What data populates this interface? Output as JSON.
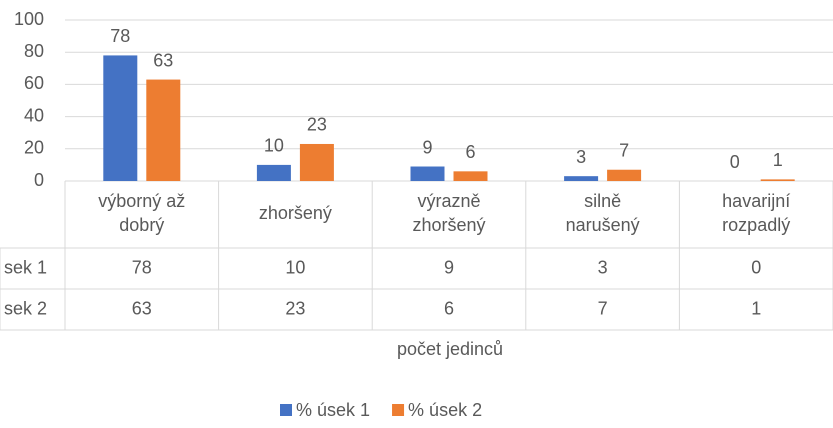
{
  "chart_data": {
    "type": "bar",
    "categories": [
      "výborný až\ndobrý",
      "zhoršený",
      "výrazně\nzhoršený",
      "silně\nnarušený",
      "havarijní\nrozpadlý"
    ],
    "series": [
      {
        "name": "% úsek 1",
        "color": "#4472c4",
        "values": [
          78,
          10,
          9,
          3,
          0
        ]
      },
      {
        "name": "% úsek 2",
        "color": "#ed7d31",
        "values": [
          63,
          23,
          6,
          7,
          1
        ]
      }
    ],
    "table_row_labels": [
      "sek 1",
      "sek 2"
    ],
    "x_axis_label": "počet jedinců",
    "ylim": [
      0,
      100
    ],
    "yticks": [
      0,
      20,
      40,
      60,
      80,
      100
    ],
    "grid": true,
    "legend": "bottom"
  }
}
